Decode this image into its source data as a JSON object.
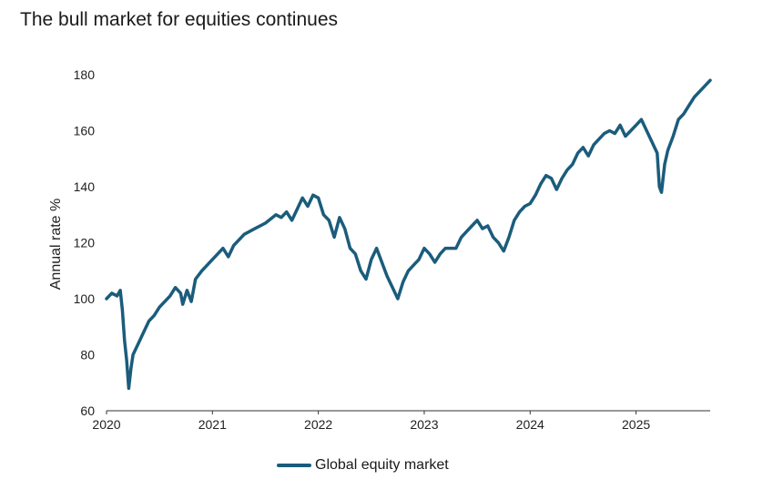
{
  "chart_data": {
    "type": "line",
    "title": "The bull market for equities continues",
    "ylabel": "Annual rate %",
    "xlabel": "",
    "ylim": [
      60,
      180
    ],
    "yticks": [
      60,
      80,
      100,
      120,
      140,
      160,
      180
    ],
    "xlim": [
      2020.0,
      2025.7
    ],
    "xticks": [
      "2020",
      "2021",
      "2022",
      "2023",
      "2024",
      "2025"
    ],
    "grid": false,
    "legend_position": "bottom-center",
    "color": "#1b5c7c",
    "series": [
      {
        "name": "Global equity market",
        "points": [
          [
            2020.0,
            100
          ],
          [
            2020.05,
            102
          ],
          [
            2020.1,
            101
          ],
          [
            2020.13,
            103
          ],
          [
            2020.15,
            96
          ],
          [
            2020.17,
            85
          ],
          [
            2020.19,
            78
          ],
          [
            2020.21,
            68
          ],
          [
            2020.23,
            75
          ],
          [
            2020.25,
            80
          ],
          [
            2020.3,
            84
          ],
          [
            2020.35,
            88
          ],
          [
            2020.4,
            92
          ],
          [
            2020.45,
            94
          ],
          [
            2020.5,
            97
          ],
          [
            2020.55,
            99
          ],
          [
            2020.6,
            101
          ],
          [
            2020.65,
            104
          ],
          [
            2020.7,
            102
          ],
          [
            2020.72,
            98
          ],
          [
            2020.76,
            103
          ],
          [
            2020.8,
            99
          ],
          [
            2020.84,
            107
          ],
          [
            2020.9,
            110
          ],
          [
            2021.0,
            114
          ],
          [
            2021.05,
            116
          ],
          [
            2021.1,
            118
          ],
          [
            2021.15,
            115
          ],
          [
            2021.2,
            119
          ],
          [
            2021.3,
            123
          ],
          [
            2021.4,
            125
          ],
          [
            2021.5,
            127
          ],
          [
            2021.6,
            130
          ],
          [
            2021.65,
            129
          ],
          [
            2021.7,
            131
          ],
          [
            2021.75,
            128
          ],
          [
            2021.8,
            132
          ],
          [
            2021.85,
            136
          ],
          [
            2021.9,
            133
          ],
          [
            2021.95,
            137
          ],
          [
            2022.0,
            136
          ],
          [
            2022.05,
            130
          ],
          [
            2022.1,
            128
          ],
          [
            2022.15,
            122
          ],
          [
            2022.2,
            129
          ],
          [
            2022.25,
            125
          ],
          [
            2022.3,
            118
          ],
          [
            2022.35,
            116
          ],
          [
            2022.4,
            110
          ],
          [
            2022.45,
            107
          ],
          [
            2022.5,
            114
          ],
          [
            2022.55,
            118
          ],
          [
            2022.6,
            113
          ],
          [
            2022.65,
            108
          ],
          [
            2022.7,
            104
          ],
          [
            2022.75,
            100
          ],
          [
            2022.8,
            106
          ],
          [
            2022.85,
            110
          ],
          [
            2022.9,
            112
          ],
          [
            2022.95,
            114
          ],
          [
            2023.0,
            118
          ],
          [
            2023.05,
            116
          ],
          [
            2023.1,
            113
          ],
          [
            2023.15,
            116
          ],
          [
            2023.2,
            118
          ],
          [
            2023.3,
            118
          ],
          [
            2023.35,
            122
          ],
          [
            2023.4,
            124
          ],
          [
            2023.45,
            126
          ],
          [
            2023.5,
            128
          ],
          [
            2023.55,
            125
          ],
          [
            2023.6,
            126
          ],
          [
            2023.65,
            122
          ],
          [
            2023.7,
            120
          ],
          [
            2023.75,
            117
          ],
          [
            2023.8,
            122
          ],
          [
            2023.85,
            128
          ],
          [
            2023.9,
            131
          ],
          [
            2023.95,
            133
          ],
          [
            2024.0,
            134
          ],
          [
            2024.05,
            137
          ],
          [
            2024.1,
            141
          ],
          [
            2024.15,
            144
          ],
          [
            2024.2,
            143
          ],
          [
            2024.25,
            139
          ],
          [
            2024.3,
            143
          ],
          [
            2024.35,
            146
          ],
          [
            2024.4,
            148
          ],
          [
            2024.45,
            152
          ],
          [
            2024.5,
            154
          ],
          [
            2024.55,
            151
          ],
          [
            2024.6,
            155
          ],
          [
            2024.65,
            157
          ],
          [
            2024.7,
            159
          ],
          [
            2024.75,
            160
          ],
          [
            2024.8,
            159
          ],
          [
            2024.85,
            162
          ],
          [
            2024.9,
            158
          ],
          [
            2024.95,
            160
          ],
          [
            2025.0,
            162
          ],
          [
            2025.05,
            164
          ],
          [
            2025.1,
            160
          ],
          [
            2025.15,
            156
          ],
          [
            2025.2,
            152
          ],
          [
            2025.22,
            140
          ],
          [
            2025.24,
            138
          ],
          [
            2025.27,
            148
          ],
          [
            2025.3,
            153
          ],
          [
            2025.35,
            158
          ],
          [
            2025.4,
            164
          ],
          [
            2025.45,
            166
          ],
          [
            2025.5,
            169
          ],
          [
            2025.55,
            172
          ],
          [
            2025.6,
            174
          ],
          [
            2025.65,
            176
          ],
          [
            2025.7,
            178
          ]
        ]
      }
    ]
  }
}
